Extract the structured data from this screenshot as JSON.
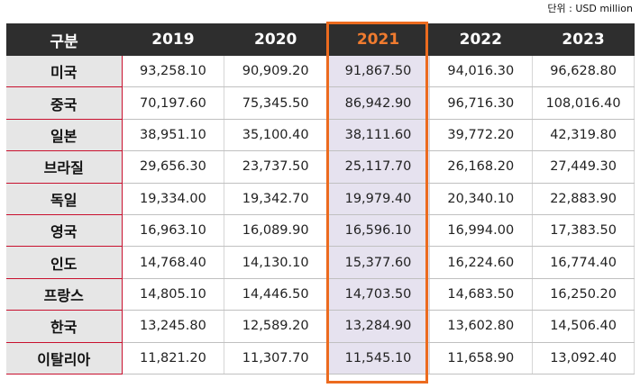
{
  "unit_label": "단위 : USD million",
  "header": {
    "row_label": "구분",
    "years": [
      "2019",
      "2020",
      "2021",
      "2022",
      "2023"
    ]
  },
  "highlight_color": "#ec6b1f",
  "rows": [
    {
      "label": "미국",
      "values": [
        "93,258.10",
        "90,909.20",
        "91,867.50",
        "94,016.30",
        "96,628.80"
      ]
    },
    {
      "label": "중국",
      "values": [
        "70,197.60",
        "75,345.50",
        "86,942.90",
        "96,716.30",
        "108,016.40"
      ]
    },
    {
      "label": "일본",
      "values": [
        "38,951.10",
        "35,100.40",
        "38,111.60",
        "39,772.20",
        "42,319.80"
      ]
    },
    {
      "label": "브라질",
      "values": [
        "29,656.30",
        "23,737.50",
        "25,117.70",
        "26,168.20",
        "27,449.30"
      ]
    },
    {
      "label": "독일",
      "values": [
        "19,334.00",
        "19,342.70",
        "19,979.40",
        "20,340.10",
        "22,883.90"
      ]
    },
    {
      "label": "영국",
      "values": [
        "16,963.10",
        "16,089.90",
        "16,596.10",
        "16,994.00",
        "17,383.50"
      ]
    },
    {
      "label": "인도",
      "values": [
        "14,768.40",
        "14,130.10",
        "15,377.60",
        "16,224.60",
        "16,774.40"
      ]
    },
    {
      "label": "프랑스",
      "values": [
        "14,805.10",
        "14,446.50",
        "14,703.50",
        "14,683.50",
        "16,250.20"
      ]
    },
    {
      "label": "한국",
      "values": [
        "13,245.80",
        "12,589.20",
        "13,284.90",
        "13,602.80",
        "14,506.40"
      ]
    },
    {
      "label": "이탈리아",
      "values": [
        "11,821.20",
        "11,307.70",
        "11,545.10",
        "11,658.90",
        "13,092.40"
      ]
    }
  ]
}
